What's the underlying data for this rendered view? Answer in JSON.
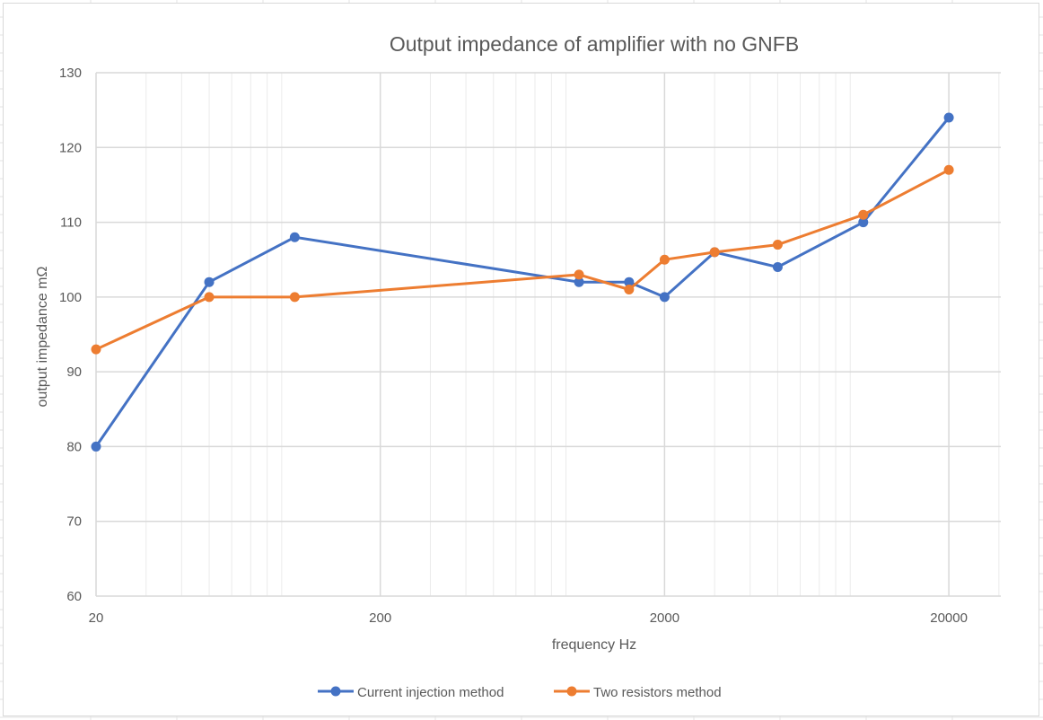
{
  "chart_data": {
    "type": "line",
    "title": "Output impedance of amplifier with no GNFB",
    "xlabel": "frequency Hz",
    "ylabel": "output impedance mΩ",
    "x_scale": "log",
    "xlim": [
      20,
      20000
    ],
    "ylim": [
      60,
      130
    ],
    "x_ticks": [
      20,
      200,
      2000,
      20000
    ],
    "x_tick_labels": [
      "20",
      "200",
      "2000",
      "20000"
    ],
    "y_ticks": [
      60,
      70,
      80,
      90,
      100,
      110,
      120,
      130
    ],
    "y_tick_labels": [
      "60",
      "70",
      "80",
      "90",
      "100",
      "110",
      "120",
      "130"
    ],
    "grid": true,
    "legend_position": "bottom",
    "series": [
      {
        "name": "Current injection method",
        "color": "#4472c4",
        "x": [
          20,
          50,
          100,
          1000,
          1500,
          2000,
          3000,
          5000,
          10000,
          20000
        ],
        "y": [
          80,
          102,
          108,
          102,
          102,
          100,
          106,
          104,
          110,
          124
        ]
      },
      {
        "name": "Two resistors method",
        "color": "#ed7d31",
        "x": [
          20,
          50,
          100,
          1000,
          1500,
          2000,
          3000,
          5000,
          10000,
          20000
        ],
        "y": [
          93,
          100,
          100,
          103,
          101,
          105,
          106,
          107,
          111,
          117
        ]
      }
    ]
  },
  "colors": {
    "grid": "#d9d9d9",
    "minor_grid": "#ebebeb",
    "text": "#595959"
  }
}
